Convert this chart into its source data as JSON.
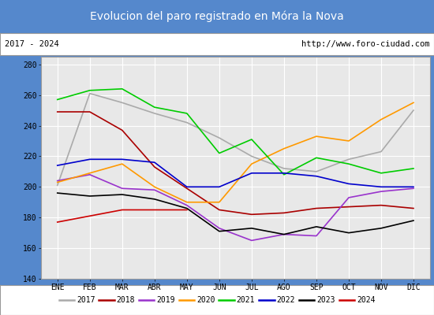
{
  "title": "Evolucion del paro registrado en Móra la Nova",
  "subtitle_left": "2017 - 2024",
  "subtitle_right": "http://www.foro-ciudad.com",
  "months": [
    "ENE",
    "FEB",
    "MAR",
    "ABR",
    "MAY",
    "JUN",
    "JUL",
    "AGO",
    "SEP",
    "OCT",
    "NOV",
    "DIC"
  ],
  "ylim": [
    140,
    285
  ],
  "yticks": [
    140,
    160,
    180,
    200,
    220,
    240,
    260,
    280
  ],
  "series": {
    "2017": {
      "color": "#aaaaaa",
      "values": [
        201,
        261,
        255,
        248,
        242,
        232,
        220,
        212,
        210,
        218,
        223,
        250
      ]
    },
    "2018": {
      "color": "#aa0000",
      "values": [
        249,
        249,
        237,
        213,
        199,
        185,
        182,
        183,
        186,
        187,
        188,
        186
      ]
    },
    "2019": {
      "color": "#9933cc",
      "values": [
        204,
        208,
        199,
        198,
        188,
        173,
        165,
        169,
        168,
        193,
        197,
        199
      ]
    },
    "2020": {
      "color": "#ff9900",
      "values": [
        203,
        209,
        215,
        200,
        190,
        190,
        215,
        225,
        233,
        230,
        244,
        255
      ]
    },
    "2021": {
      "color": "#00cc00",
      "values": [
        257,
        263,
        264,
        252,
        248,
        222,
        231,
        208,
        219,
        215,
        209,
        212
      ]
    },
    "2022": {
      "color": "#0000cc",
      "values": [
        214,
        218,
        218,
        216,
        200,
        200,
        209,
        209,
        207,
        202,
        200,
        200
      ]
    },
    "2023": {
      "color": "#000000",
      "values": [
        196,
        194,
        195,
        192,
        186,
        171,
        173,
        169,
        174,
        170,
        173,
        178
      ]
    },
    "2024": {
      "color": "#cc0000",
      "values": [
        177,
        181,
        185,
        185,
        185,
        null,
        null,
        null,
        null,
        null,
        null,
        null
      ]
    }
  },
  "title_bg_color": "#5588cc",
  "title_font_color": "#ffffff",
  "plot_bg_color": "#e8e8e8",
  "grid_color": "#ffffff",
  "border_color": "#999999",
  "fig_width": 5.5,
  "fig_height": 4.0,
  "dpi": 100
}
